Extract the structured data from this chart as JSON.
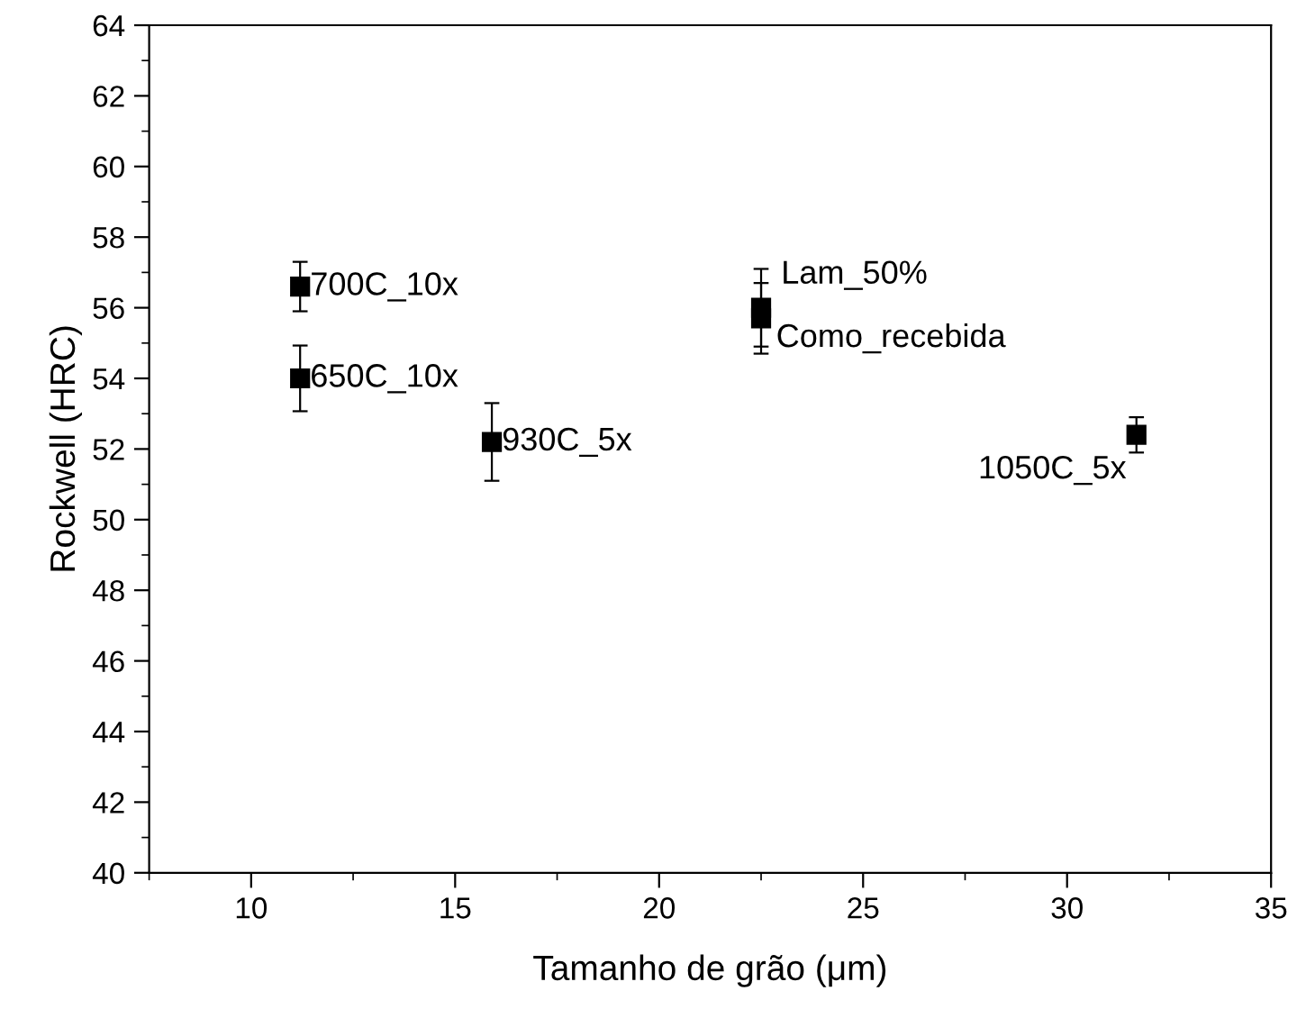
{
  "chart_data": {
    "type": "scatter",
    "xlabel": "Tamanho de grão (μm)",
    "ylabel": "Rockwell (HRC)",
    "x": [
      11.2,
      11.2,
      15.9,
      22.5,
      22.5,
      31.7
    ],
    "values": [
      56.6,
      54.0,
      52.2,
      56.0,
      55.7,
      52.4
    ],
    "errors": [
      0.7,
      0.93,
      1.1,
      1.1,
      1.0,
      0.5
    ],
    "color": "#000000",
    "marker": "square",
    "grid": false,
    "legend": false,
    "xlim": [
      7.5,
      35
    ],
    "xticks": [
      10,
      15,
      20,
      25,
      30,
      35
    ],
    "ylim": [
      40,
      64
    ],
    "yticks": [
      40,
      42,
      44,
      46,
      48,
      50,
      52,
      54,
      56,
      58,
      60,
      62,
      64
    ],
    "annotations": [
      {
        "text": "700C_10x",
        "x": 11.2,
        "y": 56.6
      },
      {
        "text": "650C_10x",
        "x": 11.2,
        "y": 54.0
      },
      {
        "text": "930C_5x",
        "x": 15.9,
        "y": 52.2
      },
      {
        "text": "Lam_50%",
        "x": 22.5,
        "y": 56.0
      },
      {
        "text": "Como_recebida",
        "x": 22.5,
        "y": 55.7
      },
      {
        "text": "1050C_5x",
        "x": 31.7,
        "y": 52.4
      }
    ]
  }
}
